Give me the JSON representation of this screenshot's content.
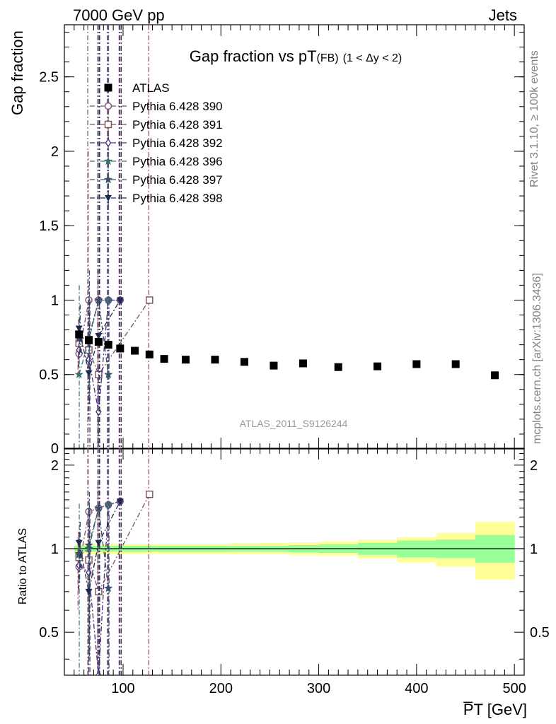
{
  "header": {
    "energy_label": "7000 GeV pp",
    "category_label": "Jets",
    "side_label_top": "Rivet 3.1.10, ≥ 100k events",
    "side_label_bottom": "mcplots.cern.ch [arXiv:1306.3436]",
    "watermark": "ATLAS_2011_S9126244"
  },
  "chart_data": [
    {
      "type": "scatter",
      "panel": "main",
      "title_main": "Gap fraction vs pT",
      "title_sub": "(FB)",
      "title_range": "(1 < Δy < 2)",
      "ylabel": "Gap fraction",
      "xlim": [
        40,
        510
      ],
      "ylim": [
        0,
        2.85
      ],
      "y_ticks": [
        0.5,
        1,
        1.5,
        2,
        2.5
      ],
      "y_tick_labels": [
        "0.5",
        "1",
        "1.5",
        "2",
        "2.5"
      ],
      "legend_position": "top-left",
      "series": [
        {
          "name": "ATLAS",
          "marker": "square-filled",
          "color": "#000000",
          "line": "none",
          "points": [
            {
              "x": 55,
              "y": 0.77
            },
            {
              "x": 65,
              "y": 0.73
            },
            {
              "x": 75,
              "y": 0.72
            },
            {
              "x": 85,
              "y": 0.7
            },
            {
              "x": 97,
              "y": 0.675
            },
            {
              "x": 112,
              "y": 0.66
            },
            {
              "x": 127,
              "y": 0.635
            },
            {
              "x": 142,
              "y": 0.605
            },
            {
              "x": 164,
              "y": 0.6
            },
            {
              "x": 194,
              "y": 0.6
            },
            {
              "x": 224,
              "y": 0.585
            },
            {
              "x": 254,
              "y": 0.56
            },
            {
              "x": 284,
              "y": 0.575
            },
            {
              "x": 320,
              "y": 0.55
            },
            {
              "x": 360,
              "y": 0.555
            },
            {
              "x": 400,
              "y": 0.57
            },
            {
              "x": 440,
              "y": 0.57
            },
            {
              "x": 480,
              "y": 0.495
            }
          ]
        },
        {
          "name": "Pythia 6.428 390",
          "marker": "circle-open",
          "color": "#7a4f7a",
          "points": [
            {
              "x": 55,
              "y": 0.64,
              "lo": 0.5,
              "hi": 0.78
            },
            {
              "x": 65,
              "y": 1.0,
              "lo": 0.0,
              "hi": 2.85
            },
            {
              "x": 75,
              "y": 1.0,
              "lo": 0.0,
              "hi": 2.85
            },
            {
              "x": 85,
              "y": 1.0,
              "lo": 0.0,
              "hi": 2.85
            },
            {
              "x": 97,
              "y": 1.0,
              "lo": 0.0,
              "hi": 2.85
            }
          ]
        },
        {
          "name": "Pythia 6.428 391",
          "marker": "square-open",
          "color": "#7a4f5a",
          "points": [
            {
              "x": 55,
              "y": 0.71,
              "lo": 0.55,
              "hi": 0.87
            },
            {
              "x": 65,
              "y": 0.665,
              "lo": 0.0,
              "hi": 2.0
            },
            {
              "x": 75,
              "y": 0.5,
              "lo": 0.0,
              "hi": 1.2
            },
            {
              "x": 127,
              "y": 1.0,
              "lo": 0.0,
              "hi": 2.85
            }
          ]
        },
        {
          "name": "Pythia 6.428 392",
          "marker": "diamond-open",
          "color": "#4a2a7a",
          "points": [
            {
              "x": 55,
              "y": 0.665,
              "lo": 0.55,
              "hi": 0.78
            },
            {
              "x": 65,
              "y": 0.6,
              "lo": 0.2,
              "hi": 1.0
            },
            {
              "x": 75,
              "y": 0.25,
              "lo": 0.0,
              "hi": 0.55
            },
            {
              "x": 85,
              "y": 1.0,
              "lo": 0.0,
              "hi": 2.85
            },
            {
              "x": 97,
              "y": 1.0,
              "lo": 0.0,
              "hi": 2.85
            }
          ]
        },
        {
          "name": "Pythia 6.428 396",
          "marker": "star-filled",
          "color": "#3f6f6f",
          "points": [
            {
              "x": 55,
              "y": 0.5,
              "lo": 0.0,
              "hi": 1.1
            },
            {
              "x": 65,
              "y": 0.73,
              "lo": 0.3,
              "hi": 1.1
            },
            {
              "x": 75,
              "y": 1.0,
              "lo": 0.0,
              "hi": 2.85
            },
            {
              "x": 85,
              "y": 1.0,
              "lo": 0.0,
              "hi": 2.85
            }
          ]
        },
        {
          "name": "Pythia 6.428 397",
          "marker": "star-filled",
          "color": "#3a4f6a",
          "points": [
            {
              "x": 55,
              "y": 0.74,
              "lo": 0.6,
              "hi": 0.88
            },
            {
              "x": 65,
              "y": 0.75,
              "lo": 0.3,
              "hi": 1.2
            },
            {
              "x": 75,
              "y": 1.0,
              "lo": 0.0,
              "hi": 2.85
            },
            {
              "x": 85,
              "y": 0.5,
              "lo": 0.0,
              "hi": 1.0
            }
          ]
        },
        {
          "name": "Pythia 6.428 398",
          "marker": "triangle-down-filled",
          "color": "#1d2a4f",
          "points": [
            {
              "x": 55,
              "y": 0.81,
              "lo": 0.65,
              "hi": 0.97
            },
            {
              "x": 65,
              "y": 0.51,
              "lo": 0.0,
              "hi": 1.0
            },
            {
              "x": 75,
              "y": 0.76,
              "lo": 0.0,
              "hi": 2.85
            },
            {
              "x": 97,
              "y": 1.0,
              "lo": 0.0,
              "hi": 2.85
            }
          ]
        }
      ]
    },
    {
      "type": "scatter",
      "panel": "ratio",
      "ylabel": "Ratio to ATLAS",
      "xlabel": "P̅T [GeV]",
      "xlim": [
        40,
        510
      ],
      "ylim": [
        0.35,
        2.3
      ],
      "y_ticks": [
        0.5,
        1,
        2
      ],
      "y_tick_labels": [
        "0.5",
        "1",
        "2"
      ],
      "x_ticks": [
        100,
        200,
        300,
        400,
        500
      ],
      "x_tick_labels": [
        "100",
        "200",
        "300",
        "400",
        "500"
      ],
      "reference_line": 1,
      "bands": {
        "edges": [
          50,
          60,
          70,
          80,
          90,
          105,
          120,
          135,
          150,
          180,
          210,
          240,
          270,
          300,
          340,
          380,
          420,
          460,
          500
        ],
        "stat_lo": [
          0.975,
          0.975,
          0.975,
          0.975,
          0.975,
          0.975,
          0.975,
          0.975,
          0.975,
          0.975,
          0.975,
          0.975,
          0.97,
          0.965,
          0.95,
          0.93,
          0.925,
          0.89
        ],
        "stat_hi": [
          1.025,
          1.025,
          1.025,
          1.025,
          1.025,
          1.025,
          1.025,
          1.025,
          1.025,
          1.025,
          1.025,
          1.025,
          1.03,
          1.035,
          1.05,
          1.07,
          1.08,
          1.12
        ],
        "total_lo": [
          0.96,
          0.96,
          0.96,
          0.96,
          0.96,
          0.96,
          0.96,
          0.96,
          0.96,
          0.96,
          0.955,
          0.955,
          0.95,
          0.945,
          0.925,
          0.895,
          0.865,
          0.775
        ],
        "total_hi": [
          1.04,
          1.04,
          1.04,
          1.04,
          1.04,
          1.04,
          1.04,
          1.04,
          1.04,
          1.04,
          1.045,
          1.05,
          1.055,
          1.06,
          1.08,
          1.1,
          1.14,
          1.25
        ],
        "stat_color": "#99ff99",
        "total_color": "#ffff99"
      },
      "series": [
        {
          "name": "Pythia 6.428 390",
          "points": [
            {
              "x": 55,
              "y": 0.86,
              "lo": 0.6,
              "hi": 1.1
            },
            {
              "x": 65,
              "y": 1.36,
              "lo": 0.0,
              "hi": 3
            },
            {
              "x": 75,
              "y": 1.4,
              "lo": 0.0,
              "hi": 3
            },
            {
              "x": 85,
              "y": 1.44,
              "lo": 0.0,
              "hi": 3
            },
            {
              "x": 97,
              "y": 1.48,
              "lo": 0.0,
              "hi": 3
            }
          ]
        },
        {
          "name": "Pythia 6.428 391",
          "points": [
            {
              "x": 55,
              "y": 0.93,
              "lo": 0.7,
              "hi": 1.15
            },
            {
              "x": 65,
              "y": 0.91,
              "lo": 0.0,
              "hi": 3
            },
            {
              "x": 75,
              "y": 0.7,
              "lo": 0.0,
              "hi": 1.7
            },
            {
              "x": 127,
              "y": 1.57,
              "lo": 0.0,
              "hi": 3
            }
          ]
        },
        {
          "name": "Pythia 6.428 392",
          "points": [
            {
              "x": 55,
              "y": 0.87,
              "lo": 0.7,
              "hi": 1.05
            },
            {
              "x": 65,
              "y": 0.82,
              "lo": 0.3,
              "hi": 1.4
            },
            {
              "x": 75,
              "y": 0.35,
              "lo": 0.0,
              "hi": 0.8
            },
            {
              "x": 85,
              "y": 1.44,
              "lo": 0.0,
              "hi": 3
            },
            {
              "x": 97,
              "y": 1.48,
              "lo": 0.0,
              "hi": 3
            }
          ]
        },
        {
          "name": "Pythia 6.428 396",
          "points": [
            {
              "x": 55,
              "y": 0.95,
              "lo": 0.0,
              "hi": 1.45
            },
            {
              "x": 65,
              "y": 1.0,
              "lo": 0.4,
              "hi": 1.5
            },
            {
              "x": 75,
              "y": 1.4,
              "lo": 0.0,
              "hi": 3
            },
            {
              "x": 85,
              "y": 1.44,
              "lo": 0.0,
              "hi": 3
            }
          ]
        },
        {
          "name": "Pythia 6.428 397",
          "points": [
            {
              "x": 55,
              "y": 0.96,
              "lo": 0.75,
              "hi": 1.15
            },
            {
              "x": 65,
              "y": 1.03,
              "lo": 0.4,
              "hi": 1.6
            },
            {
              "x": 75,
              "y": 1.4,
              "lo": 0.0,
              "hi": 3
            },
            {
              "x": 85,
              "y": 0.72,
              "lo": 0.0,
              "hi": 1.45
            }
          ]
        },
        {
          "name": "Pythia 6.428 398",
          "points": [
            {
              "x": 55,
              "y": 1.05,
              "lo": 0.85,
              "hi": 1.25
            },
            {
              "x": 65,
              "y": 0.7,
              "lo": 0.0,
              "hi": 1.4
            },
            {
              "x": 75,
              "y": 1.05,
              "lo": 0.0,
              "hi": 3
            },
            {
              "x": 97,
              "y": 1.48,
              "lo": 0.0,
              "hi": 3
            }
          ]
        }
      ]
    }
  ]
}
